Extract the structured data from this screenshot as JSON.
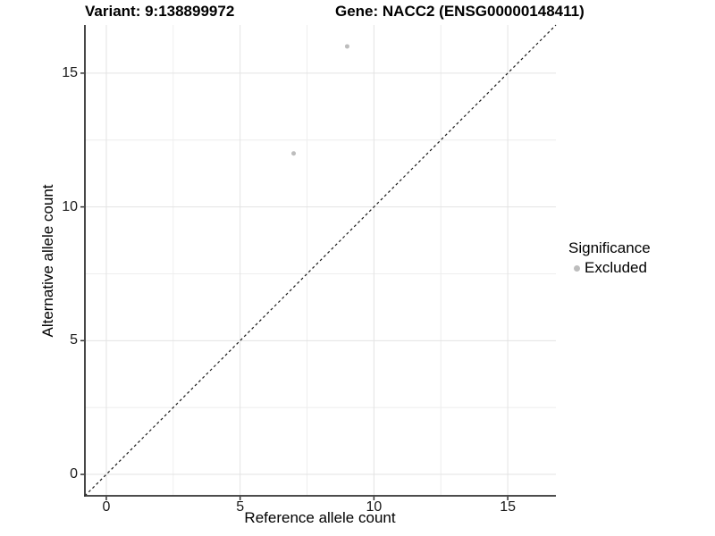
{
  "chart_data": {
    "type": "scatter",
    "title_left": "Variant: 9:138899972",
    "title_right": "Gene: NACC2 (ENSG00000148411)",
    "xlabel": "Reference allele count",
    "ylabel": "Alternative allele count",
    "xlim": [
      -0.8,
      16.8
    ],
    "ylim": [
      -0.8,
      16.8
    ],
    "x_ticks": [
      0,
      5,
      10,
      15
    ],
    "y_ticks": [
      0,
      5,
      10,
      15
    ],
    "x_minor_ticks": [
      2.5,
      7.5,
      12.5
    ],
    "y_minor_ticks": [
      2.5,
      7.5,
      12.5
    ],
    "grid": true,
    "series": [
      {
        "name": "Excluded",
        "color": "#bdbdbd",
        "points": [
          {
            "x": 9,
            "y": 16
          },
          {
            "x": 7,
            "y": 12
          }
        ]
      }
    ],
    "reference_line": {
      "type": "identity",
      "slope": 1,
      "intercept": 0,
      "style": "dashed",
      "color": "#1a1a1a"
    },
    "legend": {
      "position": "right",
      "title": "Significance",
      "entries": [
        {
          "label": "Excluded",
          "color": "#bdbdbd"
        }
      ]
    }
  },
  "colors": {
    "grid_major": "#e3e3e3",
    "grid_minor": "#eeeeee",
    "axis_line": "#333333",
    "tick_mark": "#333333",
    "point": "#bdbdbd",
    "text": "#000000"
  }
}
